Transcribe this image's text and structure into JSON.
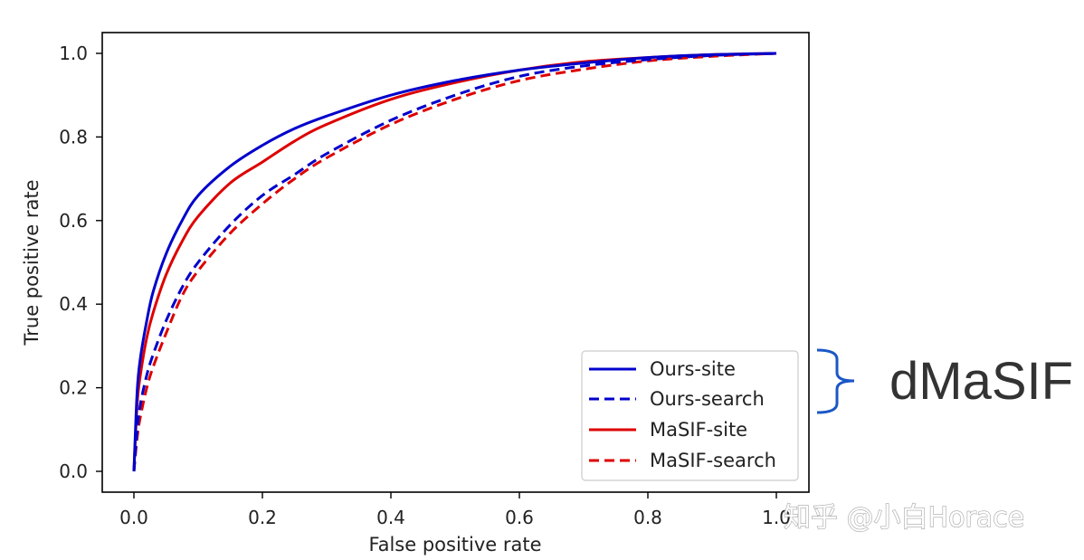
{
  "chart_data": {
    "type": "line",
    "title": "",
    "xlabel": "False positive rate",
    "ylabel": "True positive rate",
    "xlim": [
      0.0,
      1.0
    ],
    "ylim": [
      0.0,
      1.0
    ],
    "xticks": [
      "0.0",
      "0.2",
      "0.4",
      "0.6",
      "0.8",
      "1.0"
    ],
    "yticks": [
      "0.0",
      "0.2",
      "0.4",
      "0.6",
      "0.8",
      "1.0"
    ],
    "grid": false,
    "legend_position": "lower-right",
    "series": [
      {
        "name": "Ours-site",
        "color": "#0000cc",
        "linestyle": "solid",
        "x": [
          0,
          0.005,
          0.01,
          0.02,
          0.03,
          0.05,
          0.075,
          0.1,
          0.15,
          0.2,
          0.25,
          0.3,
          0.4,
          0.5,
          0.6,
          0.7,
          0.8,
          0.9,
          1.0
        ],
        "y": [
          0,
          0.19,
          0.27,
          0.36,
          0.43,
          0.52,
          0.6,
          0.66,
          0.73,
          0.78,
          0.82,
          0.85,
          0.9,
          0.935,
          0.96,
          0.977,
          0.99,
          0.997,
          1.0
        ]
      },
      {
        "name": "Ours-search",
        "color": "#0000cc",
        "linestyle": "dashed",
        "x": [
          0,
          0.005,
          0.01,
          0.02,
          0.03,
          0.05,
          0.075,
          0.1,
          0.15,
          0.2,
          0.25,
          0.3,
          0.4,
          0.5,
          0.6,
          0.7,
          0.8,
          0.9,
          1.0
        ],
        "y": [
          0,
          0.1,
          0.16,
          0.23,
          0.28,
          0.36,
          0.44,
          0.5,
          0.59,
          0.66,
          0.71,
          0.76,
          0.84,
          0.9,
          0.945,
          0.97,
          0.985,
          0.995,
          1.0
        ]
      },
      {
        "name": "MaSIF-site",
        "color": "#dd0000",
        "linestyle": "solid",
        "x": [
          0,
          0.005,
          0.01,
          0.02,
          0.03,
          0.05,
          0.075,
          0.1,
          0.15,
          0.2,
          0.25,
          0.3,
          0.4,
          0.5,
          0.6,
          0.7,
          0.8,
          0.9,
          1.0
        ],
        "y": [
          0,
          0.16,
          0.23,
          0.32,
          0.38,
          0.47,
          0.55,
          0.61,
          0.69,
          0.74,
          0.79,
          0.83,
          0.89,
          0.93,
          0.96,
          0.98,
          0.99,
          0.997,
          1.0
        ]
      },
      {
        "name": "MaSIF-search",
        "color": "#dd0000",
        "linestyle": "dashed",
        "x": [
          0,
          0.005,
          0.01,
          0.02,
          0.03,
          0.05,
          0.075,
          0.1,
          0.15,
          0.2,
          0.25,
          0.3,
          0.4,
          0.5,
          0.6,
          0.7,
          0.8,
          0.9,
          1.0
        ],
        "y": [
          0,
          0.08,
          0.13,
          0.2,
          0.25,
          0.33,
          0.42,
          0.48,
          0.57,
          0.64,
          0.7,
          0.75,
          0.83,
          0.89,
          0.935,
          0.962,
          0.982,
          0.993,
          1.0
        ]
      }
    ],
    "annotation": {
      "text": "dMaSIF",
      "brace_color": "#1a57c7",
      "applies_to": [
        "Ours-site",
        "Ours-search"
      ]
    }
  },
  "watermark": {
    "text": "知乎 @小白Horace"
  }
}
